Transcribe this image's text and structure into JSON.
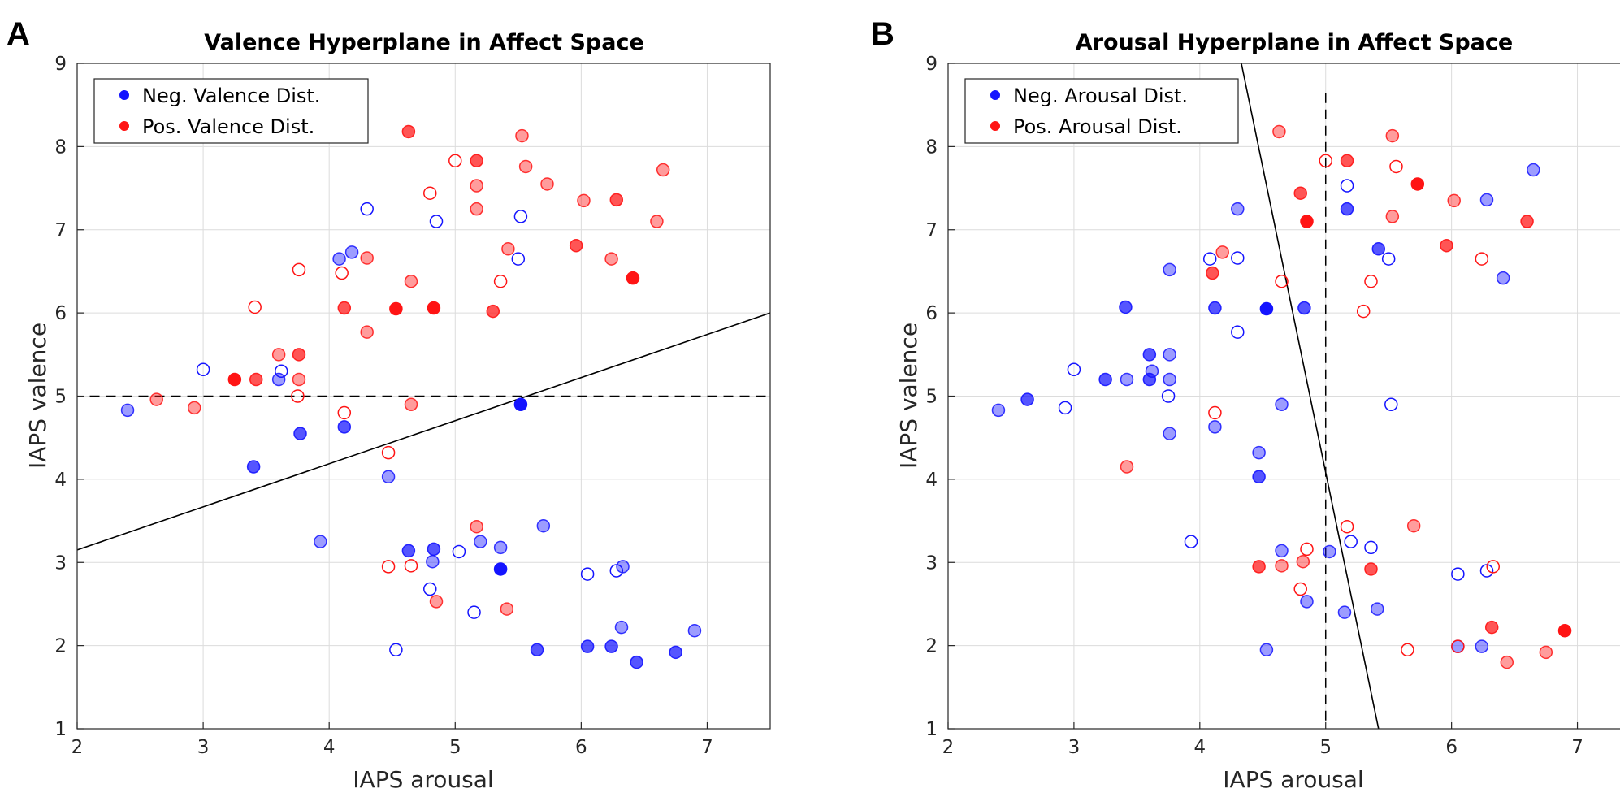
{
  "colors": {
    "neg": "#1414ff",
    "pos": "#ff1414"
  },
  "chart_data": [
    {
      "type": "scatter",
      "panel_letter": "A",
      "title": "Valence Hyperplane in Affect Space",
      "xlabel": "IAPS arousal",
      "ylabel": "IAPS valence",
      "xlim": [
        2,
        7.5
      ],
      "ylim": [
        1,
        9
      ],
      "xticks": [
        2,
        3,
        4,
        5,
        6,
        7
      ],
      "yticks": [
        1,
        2,
        3,
        4,
        5,
        6,
        7,
        8,
        9
      ],
      "grid": true,
      "legend_position": "top-left",
      "legend": [
        {
          "label": "Neg. Valence Dist.",
          "series": "neg"
        },
        {
          "label": "Pos. Valence Dist.",
          "series": "pos"
        }
      ],
      "hyperplane": [
        [
          2,
          3.15
        ],
        [
          7.5,
          6.0
        ]
      ],
      "reference_line": {
        "orientation": "horizontal",
        "value": 5,
        "range": [
          2.1,
          7.5
        ]
      },
      "series": [
        {
          "name": "neg",
          "points": [
            [
              2.4,
              4.83,
              "l"
            ],
            [
              3.0,
              5.32,
              "o"
            ],
            [
              3.6,
              5.2,
              "l"
            ],
            [
              3.62,
              5.3,
              "o"
            ],
            [
              3.4,
              4.15,
              "m"
            ],
            [
              3.77,
              4.55,
              "m"
            ],
            [
              4.12,
              4.63,
              "m"
            ],
            [
              4.08,
              6.65,
              "l"
            ],
            [
              4.18,
              6.73,
              "l"
            ],
            [
              4.3,
              7.25,
              "o"
            ],
            [
              4.47,
              4.03,
              "l"
            ],
            [
              4.85,
              7.1,
              "o"
            ],
            [
              5.52,
              7.16,
              "o"
            ],
            [
              5.5,
              6.65,
              "o"
            ],
            [
              5.52,
              4.9,
              "f"
            ],
            [
              3.93,
              3.25,
              "l"
            ],
            [
              4.63,
              3.14,
              "m"
            ],
            [
              4.83,
              3.16,
              "m"
            ],
            [
              4.82,
              3.01,
              "l"
            ],
            [
              5.03,
              3.13,
              "o"
            ],
            [
              5.2,
              3.25,
              "l"
            ],
            [
              5.36,
              3.18,
              "l"
            ],
            [
              5.36,
              2.92,
              "f"
            ],
            [
              5.7,
              3.44,
              "l"
            ],
            [
              4.8,
              2.68,
              "o"
            ],
            [
              5.15,
              2.4,
              "o"
            ],
            [
              4.53,
              1.95,
              "o"
            ],
            [
              5.65,
              1.95,
              "m"
            ],
            [
              6.05,
              2.86,
              "o"
            ],
            [
              6.28,
              2.9,
              "o"
            ],
            [
              6.33,
              2.95,
              "l"
            ],
            [
              6.32,
              2.22,
              "l"
            ],
            [
              6.05,
              1.99,
              "m"
            ],
            [
              6.24,
              1.99,
              "m"
            ],
            [
              6.44,
              1.8,
              "m"
            ],
            [
              6.75,
              1.92,
              "m"
            ],
            [
              6.9,
              2.18,
              "l"
            ]
          ]
        },
        {
          "name": "pos",
          "points": [
            [
              2.63,
              4.96,
              "l"
            ],
            [
              2.93,
              4.86,
              "l"
            ],
            [
              3.25,
              5.2,
              "f"
            ],
            [
              3.42,
              5.2,
              "m"
            ],
            [
              3.41,
              6.07,
              "o"
            ],
            [
              3.6,
              5.5,
              "l"
            ],
            [
              3.76,
              5.5,
              "m"
            ],
            [
              3.76,
              5.2,
              "l"
            ],
            [
              3.75,
              5.0,
              "o"
            ],
            [
              3.76,
              6.52,
              "o"
            ],
            [
              4.1,
              6.48,
              "o"
            ],
            [
              4.12,
              6.06,
              "m"
            ],
            [
              4.12,
              4.8,
              "o"
            ],
            [
              4.3,
              6.66,
              "l"
            ],
            [
              4.3,
              5.77,
              "l"
            ],
            [
              4.47,
              4.32,
              "o"
            ],
            [
              4.53,
              6.05,
              "f"
            ],
            [
              4.63,
              8.18,
              "m"
            ],
            [
              4.65,
              6.38,
              "l"
            ],
            [
              4.65,
              4.9,
              "l"
            ],
            [
              4.8,
              7.44,
              "o"
            ],
            [
              4.83,
              6.06,
              "f"
            ],
            [
              5.0,
              7.83,
              "o"
            ],
            [
              5.17,
              7.83,
              "m"
            ],
            [
              5.17,
              7.53,
              "l"
            ],
            [
              5.17,
              7.25,
              "l"
            ],
            [
              5.3,
              6.02,
              "m"
            ],
            [
              5.36,
              6.38,
              "o"
            ],
            [
              5.42,
              6.77,
              "l"
            ],
            [
              5.53,
              8.13,
              "l"
            ],
            [
              5.56,
              7.76,
              "l"
            ],
            [
              5.73,
              7.55,
              "l"
            ],
            [
              5.96,
              6.81,
              "m"
            ],
            [
              6.02,
              7.35,
              "l"
            ],
            [
              6.24,
              6.65,
              "l"
            ],
            [
              6.28,
              7.36,
              "m"
            ],
            [
              6.41,
              6.42,
              "f"
            ],
            [
              6.6,
              7.1,
              "l"
            ],
            [
              6.65,
              7.72,
              "l"
            ],
            [
              4.47,
              2.95,
              "o"
            ],
            [
              4.65,
              2.96,
              "o"
            ],
            [
              4.85,
              2.53,
              "l"
            ],
            [
              5.17,
              3.43,
              "l"
            ],
            [
              5.41,
              2.44,
              "l"
            ]
          ]
        }
      ]
    },
    {
      "type": "scatter",
      "panel_letter": "B",
      "title": "Arousal Hyperplane in Affect Space",
      "xlabel": "IAPS arousal",
      "ylabel": "IAPS valence",
      "xlim": [
        2,
        7.5
      ],
      "ylim": [
        1,
        9
      ],
      "xticks": [
        2,
        3,
        4,
        5,
        6,
        7
      ],
      "yticks": [
        1,
        2,
        3,
        4,
        5,
        6,
        7,
        8,
        9
      ],
      "grid": true,
      "legend_position": "top-left",
      "legend": [
        {
          "label": "Neg. Arousal Dist.",
          "series": "neg"
        },
        {
          "label": "Pos. Arousal Dist.",
          "series": "pos"
        }
      ],
      "hyperplane": [
        [
          4.33,
          9.0
        ],
        [
          5.42,
          1.0
        ]
      ],
      "reference_line": {
        "orientation": "vertical",
        "value": 5,
        "range": [
          1.1,
          8.65
        ]
      },
      "series": [
        {
          "name": "neg",
          "points": [
            [
              2.4,
              4.83,
              "l"
            ],
            [
              2.63,
              4.96,
              "m"
            ],
            [
              2.93,
              4.86,
              "o"
            ],
            [
              3.0,
              5.32,
              "o"
            ],
            [
              3.25,
              5.2,
              "m"
            ],
            [
              3.42,
              5.2,
              "l"
            ],
            [
              3.41,
              6.07,
              "m"
            ],
            [
              3.6,
              5.5,
              "m"
            ],
            [
              3.62,
              5.3,
              "l"
            ],
            [
              3.6,
              5.2,
              "m"
            ],
            [
              3.76,
              5.5,
              "l"
            ],
            [
              3.76,
              5.2,
              "l"
            ],
            [
              3.75,
              5.0,
              "o"
            ],
            [
              3.76,
              4.55,
              "l"
            ],
            [
              3.76,
              6.52,
              "l"
            ],
            [
              4.08,
              6.65,
              "o"
            ],
            [
              4.12,
              6.06,
              "m"
            ],
            [
              4.12,
              4.63,
              "l"
            ],
            [
              4.3,
              7.25,
              "l"
            ],
            [
              4.3,
              6.66,
              "o"
            ],
            [
              4.3,
              5.77,
              "o"
            ],
            [
              4.47,
              4.32,
              "l"
            ],
            [
              4.47,
              4.03,
              "m"
            ],
            [
              4.53,
              6.05,
              "f"
            ],
            [
              4.65,
              4.9,
              "l"
            ],
            [
              4.83,
              6.06,
              "m"
            ],
            [
              3.93,
              3.25,
              "o"
            ],
            [
              4.65,
              3.14,
              "l"
            ],
            [
              4.53,
              1.95,
              "l"
            ],
            [
              4.85,
              2.53,
              "l"
            ],
            [
              5.03,
              3.13,
              "l"
            ],
            [
              5.17,
              7.53,
              "o"
            ],
            [
              5.17,
              7.25,
              "m"
            ],
            [
              5.2,
              3.25,
              "o"
            ],
            [
              5.36,
              3.18,
              "o"
            ],
            [
              5.15,
              2.4,
              "l"
            ],
            [
              5.41,
              2.44,
              "l"
            ],
            [
              5.42,
              6.77,
              "m"
            ],
            [
              5.5,
              6.65,
              "o"
            ],
            [
              5.52,
              4.9,
              "o"
            ],
            [
              6.05,
              2.86,
              "o"
            ],
            [
              6.28,
              2.9,
              "o"
            ],
            [
              6.05,
              1.99,
              "l"
            ],
            [
              6.24,
              1.99,
              "l"
            ],
            [
              6.28,
              7.36,
              "l"
            ],
            [
              6.41,
              6.42,
              "l"
            ],
            [
              6.65,
              7.72,
              "l"
            ]
          ]
        },
        {
          "name": "pos",
          "points": [
            [
              3.42,
              4.15,
              "l"
            ],
            [
              4.1,
              6.48,
              "m"
            ],
            [
              4.18,
              6.73,
              "l"
            ],
            [
              4.12,
              4.8,
              "o"
            ],
            [
              4.63,
              8.18,
              "l"
            ],
            [
              4.65,
              6.38,
              "o"
            ],
            [
              4.8,
              7.44,
              "m"
            ],
            [
              4.85,
              7.1,
              "f"
            ],
            [
              5.0,
              7.83,
              "o"
            ],
            [
              5.17,
              7.83,
              "m"
            ],
            [
              5.3,
              6.02,
              "o"
            ],
            [
              5.36,
              6.38,
              "o"
            ],
            [
              5.53,
              8.13,
              "l"
            ],
            [
              5.53,
              7.16,
              "l"
            ],
            [
              5.56,
              7.76,
              "o"
            ],
            [
              5.73,
              7.55,
              "f"
            ],
            [
              5.96,
              6.81,
              "m"
            ],
            [
              6.02,
              7.35,
              "l"
            ],
            [
              6.24,
              6.65,
              "o"
            ],
            [
              6.6,
              7.1,
              "m"
            ],
            [
              4.47,
              2.95,
              "m"
            ],
            [
              4.65,
              2.96,
              "l"
            ],
            [
              4.85,
              3.16,
              "o"
            ],
            [
              4.82,
              3.01,
              "l"
            ],
            [
              4.8,
              2.68,
              "o"
            ],
            [
              5.17,
              3.43,
              "o"
            ],
            [
              5.36,
              2.92,
              "m"
            ],
            [
              5.7,
              3.44,
              "l"
            ],
            [
              5.65,
              1.95,
              "o"
            ],
            [
              6.05,
              1.99,
              "o"
            ],
            [
              6.32,
              2.22,
              "m"
            ],
            [
              6.33,
              2.95,
              "o"
            ],
            [
              6.44,
              1.8,
              "l"
            ],
            [
              6.75,
              1.92,
              "l"
            ],
            [
              6.9,
              2.18,
              "f"
            ]
          ]
        }
      ]
    }
  ]
}
